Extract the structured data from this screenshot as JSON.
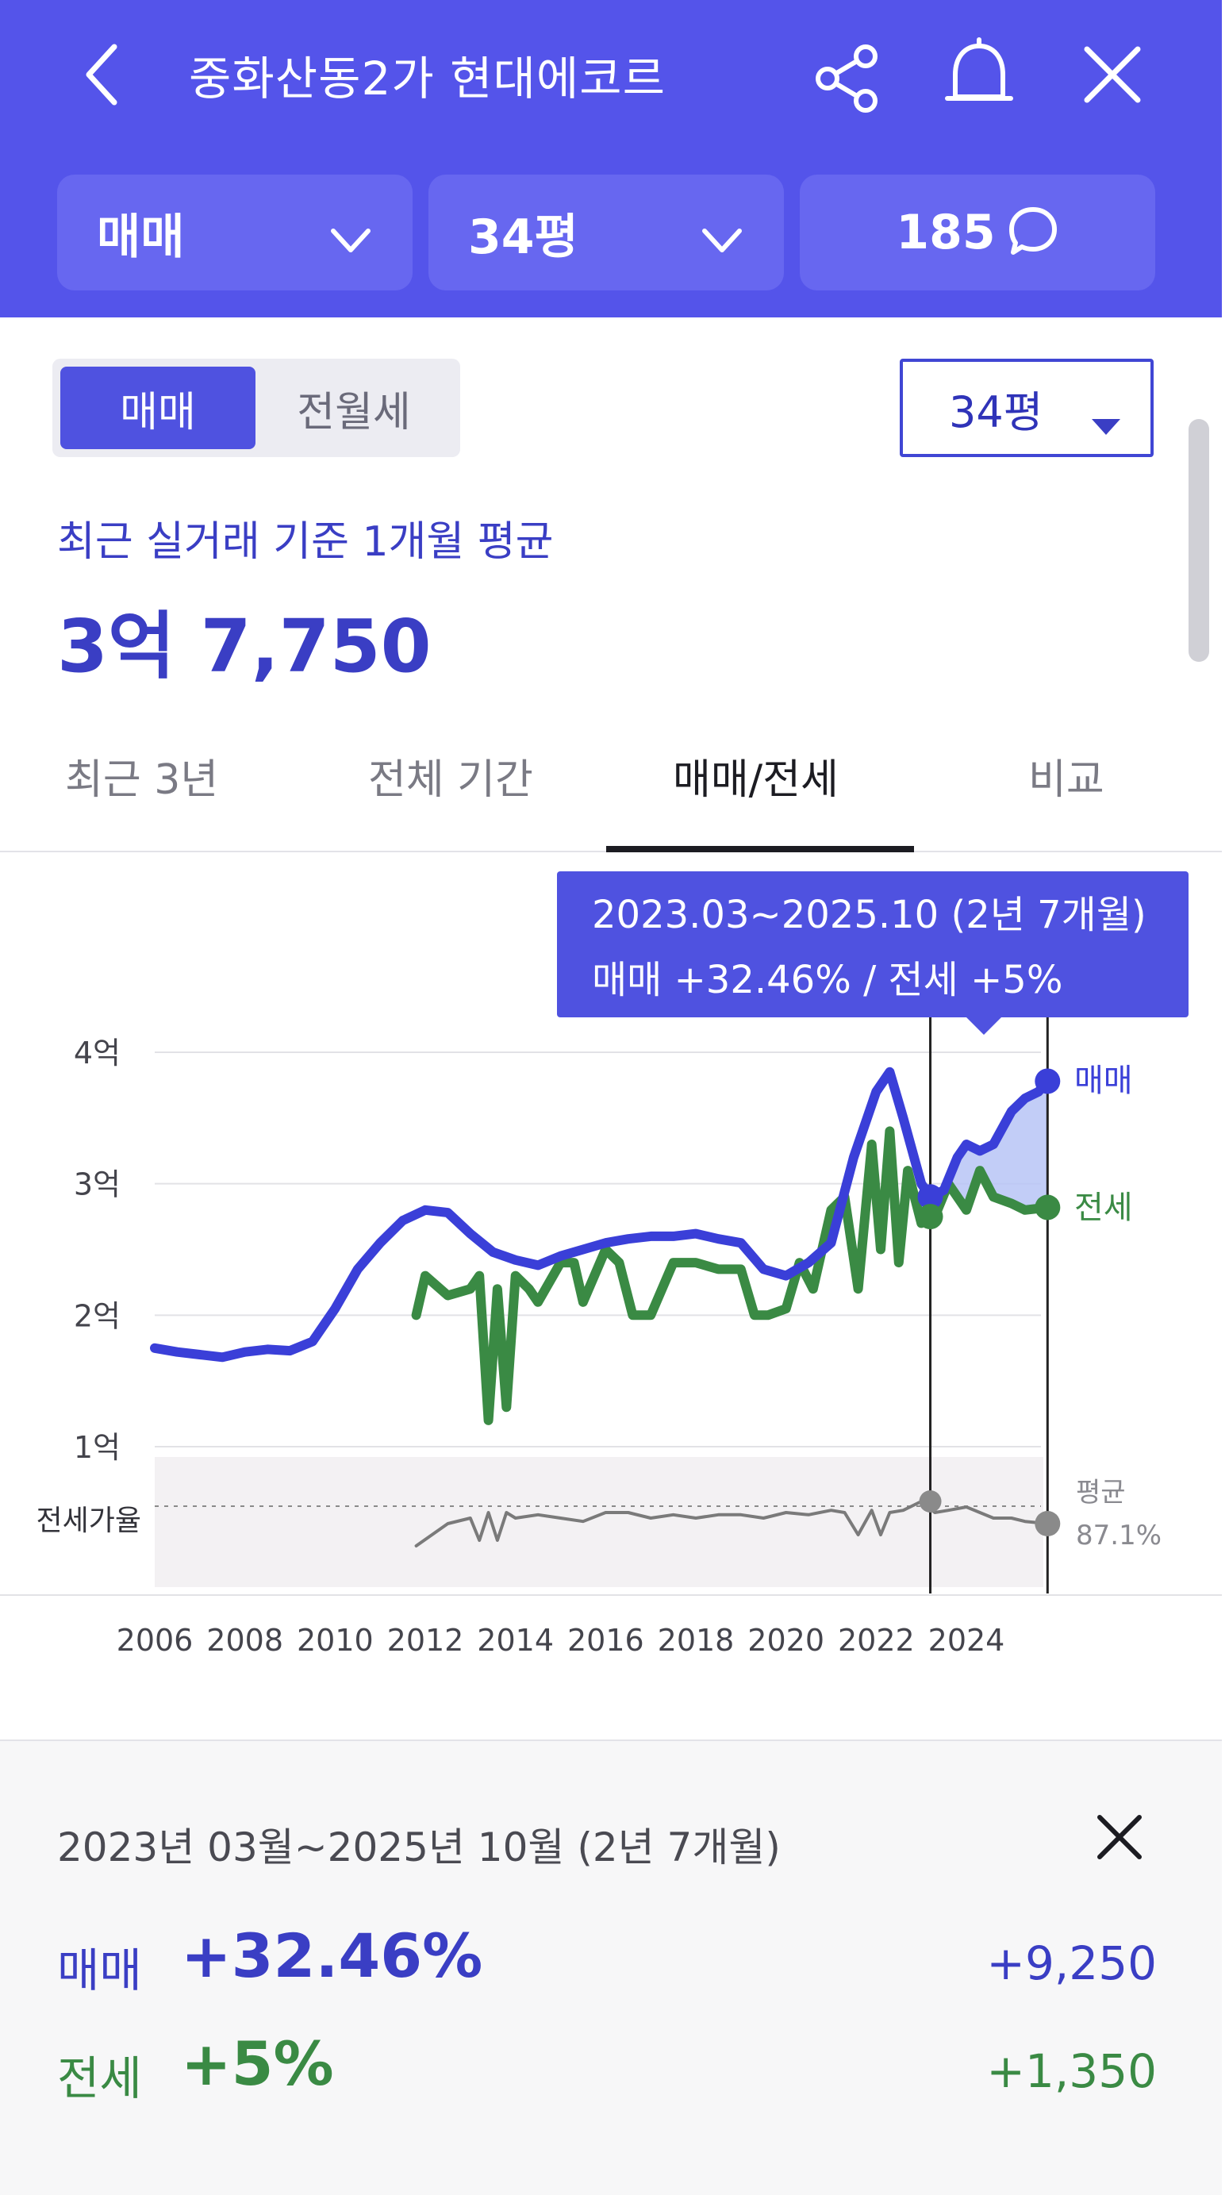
{
  "header": {
    "title": "중화산동2가 현대에코르",
    "filters": [
      {
        "label": "매매",
        "icon": "chevron-down-icon"
      },
      {
        "label": "34평",
        "icon": "chevron-down-icon"
      },
      {
        "label": "185",
        "icon": "comment-icon"
      }
    ],
    "icons": [
      "back-icon",
      "share-icon",
      "bell-icon",
      "close-icon"
    ],
    "color": "#5454ea"
  },
  "segment": {
    "active": "매매",
    "inactive": "전월세"
  },
  "size_select": {
    "value": "34평"
  },
  "summary": {
    "label": "최근 실거래 기준 1개월 평균",
    "price": "3억 7,750"
  },
  "tabs": [
    {
      "label": "최근 3년",
      "active": false
    },
    {
      "label": "전체 기간",
      "active": false
    },
    {
      "label": "매매/전세",
      "active": true
    },
    {
      "label": "비교",
      "active": false
    }
  ],
  "tooltip": {
    "line1": "2023.03~2025.10 (2년 7개월)",
    "line2": "매매 +32.46%  /  전세 +5%"
  },
  "chart_data": {
    "type": "line",
    "y_ticks": [
      "4억",
      "3억",
      "2억",
      "1억"
    ],
    "ylim": [
      1,
      4
    ],
    "x_ticks": [
      "2006",
      "2008",
      "2010",
      "2012",
      "2014",
      "2016",
      "2018",
      "2020",
      "2022",
      "2024"
    ],
    "series": [
      {
        "name": "매매",
        "color": "#3a3fd8",
        "x": [
          2006.0,
          2006.5,
          2007.0,
          2007.5,
          2008.0,
          2008.5,
          2009.0,
          2009.5,
          2010.0,
          2010.5,
          2011.0,
          2011.5,
          2012.0,
          2012.5,
          2013.0,
          2013.5,
          2014.0,
          2014.5,
          2015.0,
          2015.5,
          2016.0,
          2016.5,
          2017.0,
          2017.5,
          2018.0,
          2018.5,
          2019.0,
          2019.5,
          2020.0,
          2020.5,
          2021.0,
          2021.5,
          2022.0,
          2022.3,
          2022.6,
          2023.0,
          2023.2,
          2023.5,
          2023.8,
          2024.0,
          2024.3,
          2024.6,
          2025.0,
          2025.3,
          2025.6,
          2025.8
        ],
        "values": [
          1.75,
          1.72,
          1.7,
          1.68,
          1.72,
          1.74,
          1.73,
          1.8,
          2.05,
          2.35,
          2.55,
          2.72,
          2.8,
          2.78,
          2.62,
          2.48,
          2.42,
          2.38,
          2.45,
          2.5,
          2.55,
          2.58,
          2.6,
          2.6,
          2.62,
          2.58,
          2.55,
          2.35,
          2.3,
          2.4,
          2.55,
          3.2,
          3.7,
          3.85,
          3.5,
          3.0,
          2.9,
          2.95,
          3.2,
          3.3,
          3.25,
          3.3,
          3.55,
          3.65,
          3.7,
          3.78
        ]
      },
      {
        "name": "전세",
        "color": "#3a8a44",
        "x": [
          2011.8,
          2012.0,
          2012.5,
          2013.0,
          2013.2,
          2013.4,
          2013.6,
          2013.8,
          2014.0,
          2014.3,
          2014.5,
          2015.0,
          2015.3,
          2015.5,
          2016.0,
          2016.3,
          2016.6,
          2017.0,
          2017.5,
          2018.0,
          2018.5,
          2019.0,
          2019.3,
          2019.6,
          2020.0,
          2020.3,
          2020.6,
          2021.0,
          2021.3,
          2021.6,
          2021.9,
          2022.1,
          2022.3,
          2022.5,
          2022.7,
          2023.0,
          2023.3,
          2023.6,
          2024.0,
          2024.3,
          2024.6,
          2025.0,
          2025.3,
          2025.8
        ],
        "values": [
          2.0,
          2.3,
          2.15,
          2.2,
          2.3,
          1.2,
          2.2,
          1.3,
          2.3,
          2.2,
          2.1,
          2.4,
          2.4,
          2.1,
          2.5,
          2.4,
          2.0,
          2.0,
          2.4,
          2.4,
          2.35,
          2.35,
          2.0,
          2.0,
          2.05,
          2.4,
          2.2,
          2.8,
          2.9,
          2.2,
          3.3,
          2.5,
          3.4,
          2.4,
          3.1,
          2.7,
          2.75,
          3.0,
          2.8,
          3.1,
          2.9,
          2.85,
          2.8,
          2.82
        ]
      },
      {
        "name": "전세가율",
        "color": "#7a7a7a",
        "x": [
          2011.8,
          2012.5,
          2013.0,
          2013.2,
          2013.4,
          2013.6,
          2013.8,
          2014.0,
          2014.5,
          2015.0,
          2015.5,
          2016.0,
          2016.5,
          2017.0,
          2017.5,
          2018.0,
          2018.5,
          2019.0,
          2019.5,
          2020.0,
          2020.5,
          2021.0,
          2021.3,
          2021.6,
          2021.9,
          2022.1,
          2022.3,
          2022.6,
          2023.0,
          2023.3,
          2023.6,
          2024.0,
          2024.3,
          2024.6,
          2025.0,
          2025.3,
          2025.8
        ],
        "values": [
          0.3,
          0.5,
          0.55,
          0.35,
          0.6,
          0.35,
          0.6,
          0.55,
          0.58,
          0.55,
          0.52,
          0.6,
          0.6,
          0.55,
          0.58,
          0.55,
          0.58,
          0.58,
          0.55,
          0.6,
          0.58,
          0.62,
          0.6,
          0.4,
          0.62,
          0.4,
          0.6,
          0.62,
          0.7,
          0.6,
          0.62,
          0.65,
          0.6,
          0.55,
          0.55,
          0.52,
          0.5
        ]
      }
    ],
    "series_labels": {
      "sale": "매매",
      "jeonse": "전세",
      "ratio": "전세가율"
    },
    "ratio_avg": {
      "label": "평균",
      "value": "87.1%"
    }
  },
  "panel": {
    "period": "2023년 03월~2025년 10월 (2년 7개월)",
    "rows": [
      {
        "label": "매매",
        "pct": "+32.46%",
        "amount": "+9,250",
        "color": "#3a3ec4"
      },
      {
        "label": "전세",
        "pct": "+5%",
        "amount": "+1,350",
        "color": "#3a8a44"
      }
    ]
  }
}
